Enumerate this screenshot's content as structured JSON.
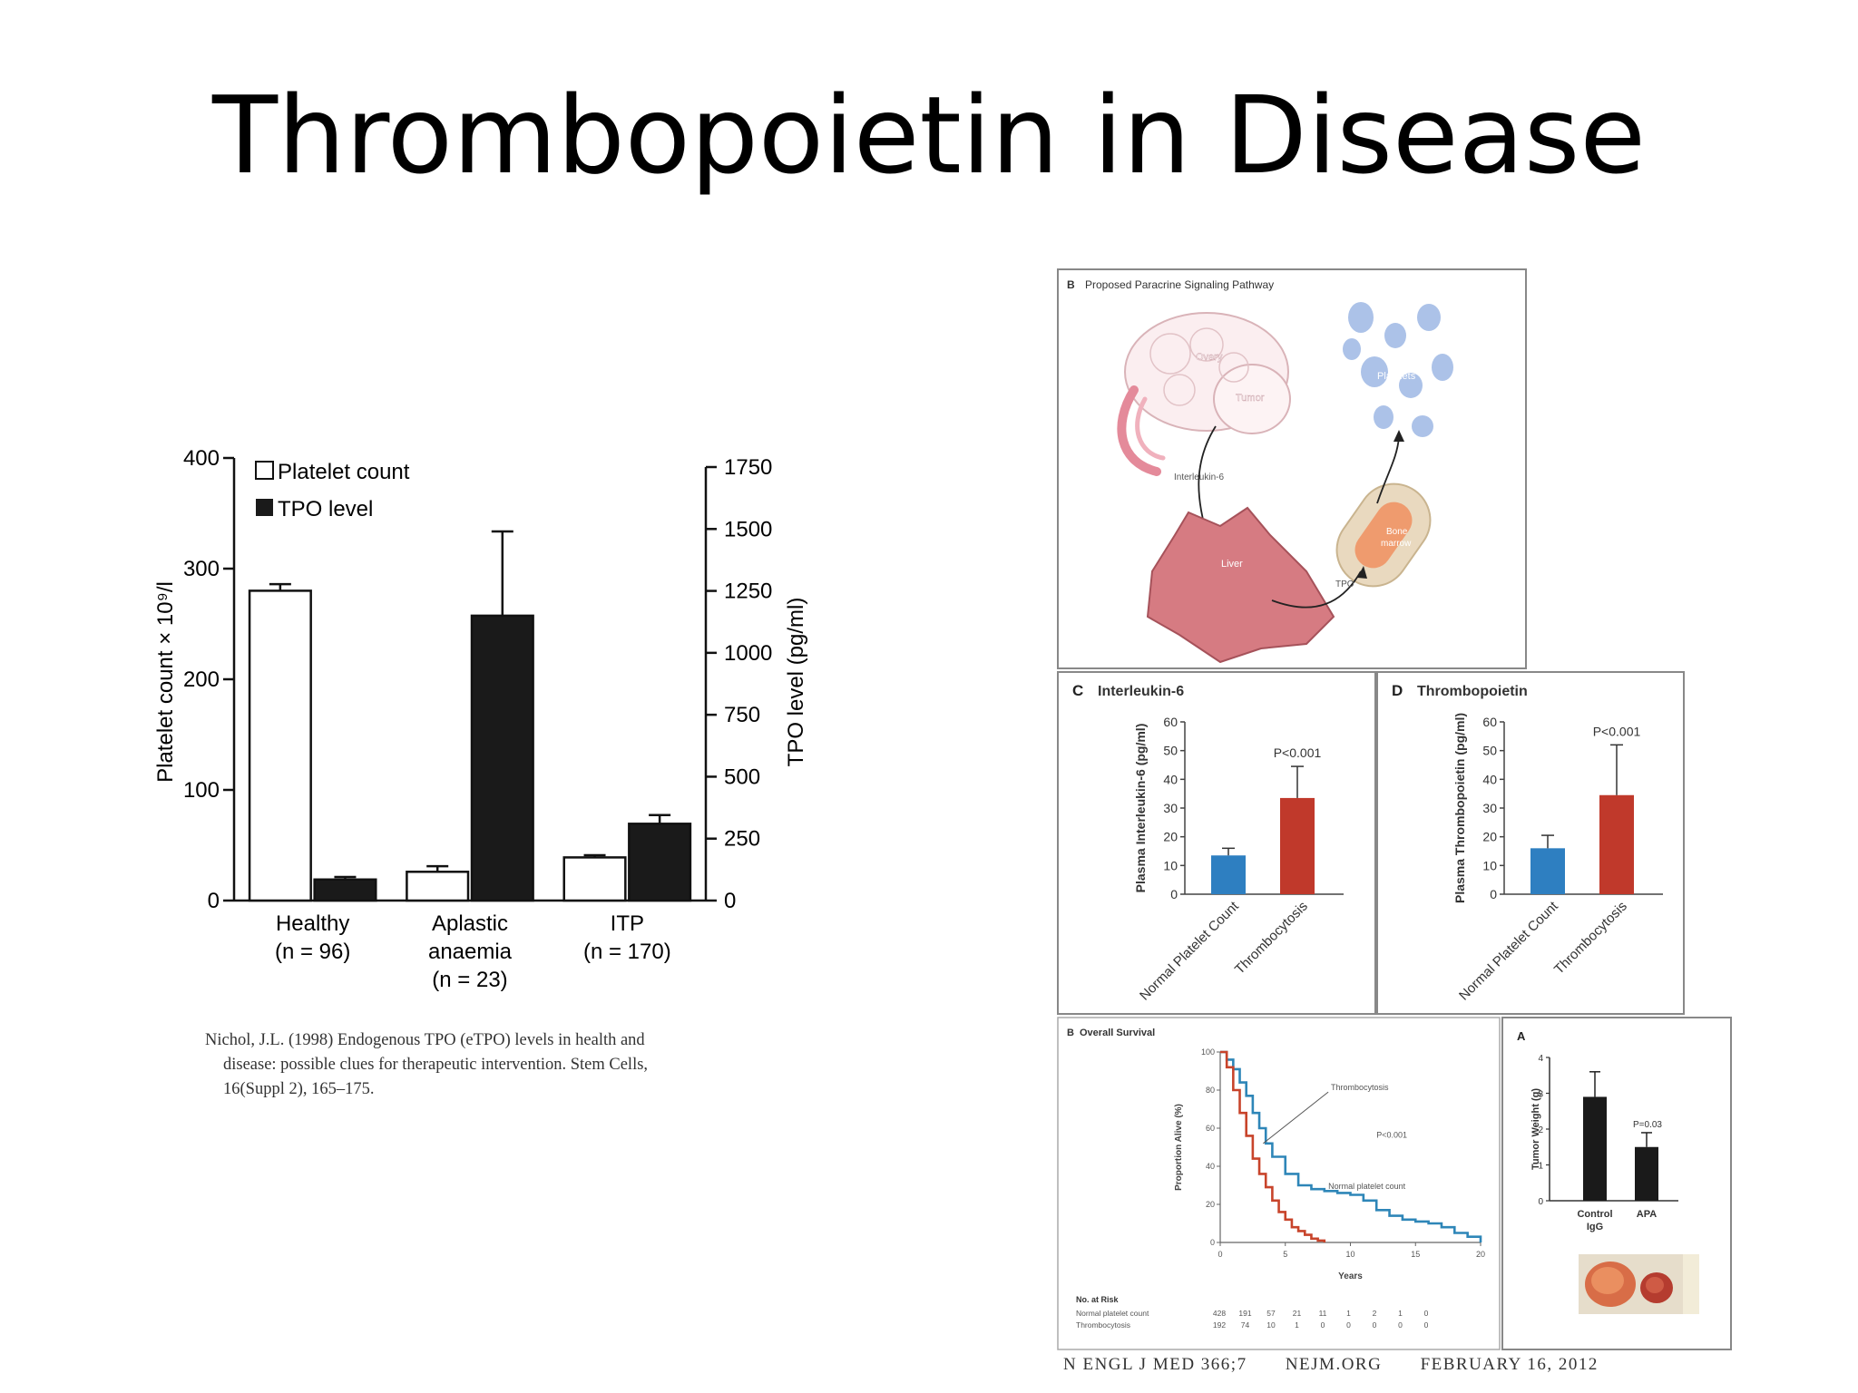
{
  "slide": {
    "title": "Thrombopoietin in Disease",
    "citation_line1": "Nichol, J.L. (1998) Endogenous TPO (eTPO) levels in health and",
    "citation_line2": "disease: possible clues for therapeutic intervention. Stem Cells,",
    "citation_line3": "16(Suppl 2), 165–175.",
    "footer_journal": "N ENGL J MED 366;7",
    "footer_site": "NEJM.ORG",
    "footer_date": "FEBRUARY 16, 2012"
  },
  "chart_data": [
    {
      "type": "bar",
      "categories": [
        "Healthy",
        "Aplastic anaemia",
        "ITP"
      ],
      "category_line1": [
        "Healthy",
        "Aplastic",
        "ITP"
      ],
      "category_line2": [
        "(n = 96)",
        "anaemia",
        "(n = 170)"
      ],
      "category_line3": [
        "",
        "(n = 23)",
        ""
      ],
      "series": [
        {
          "name": "Platelet count",
          "axis": "left",
          "values": [
            280,
            26,
            39
          ],
          "error_upper": [
            286,
            31,
            41
          ],
          "color": "#ffffff"
        },
        {
          "name": "TPO level",
          "axis": "right",
          "values": [
            85,
            1150,
            310
          ],
          "error_upper": [
            95,
            1490,
            345
          ],
          "color": "#1a1a1a"
        }
      ],
      "ylabel": "Platelet count × 10⁹/l",
      "ylabel_right": "TPO level (pg/ml)",
      "ylim": [
        0,
        400
      ],
      "ylim_right": [
        0,
        1750
      ],
      "yticks": [
        "0",
        "100",
        "200",
        "300",
        "400"
      ],
      "yticks_right": [
        "0",
        "250",
        "500",
        "750",
        "1000",
        "1250",
        "1500",
        "1750"
      ],
      "legend": "top-left"
    },
    {
      "panel": "C",
      "type": "bar",
      "title": "Interleukin-6",
      "categories": [
        "Normal Platelet Count",
        "Thrombocytosis"
      ],
      "series": [
        {
          "values": [
            13.5,
            33.5
          ],
          "error_upper": [
            16,
            44.5
          ]
        }
      ],
      "colors": [
        "#2e7fc1",
        "#c0392b"
      ],
      "ylabel": "Plasma Interleukin-6 (pg/ml)",
      "ylim": [
        0,
        60
      ],
      "yticks": [
        "0",
        "10",
        "20",
        "30",
        "40",
        "50",
        "60"
      ],
      "annotation": "P<0.001"
    },
    {
      "panel": "D",
      "type": "bar",
      "title": "Thrombopoietin",
      "categories": [
        "Normal Platelet Count",
        "Thrombocytosis"
      ],
      "series": [
        {
          "values": [
            16,
            34.5
          ],
          "error_upper": [
            20.5,
            52
          ]
        }
      ],
      "colors": [
        "#2e7fc1",
        "#c0392b"
      ],
      "ylabel": "Plasma Thrombopoietin (pg/ml)",
      "ylim": [
        0,
        60
      ],
      "yticks": [
        "0",
        "10",
        "20",
        "30",
        "40",
        "50",
        "60"
      ],
      "annotation": "P<0.001"
    },
    {
      "panel": "B",
      "type": "line",
      "title": "Overall Survival",
      "xlabel": "Years",
      "ylabel": "Proportion Alive (%)",
      "xlim": [
        0,
        20
      ],
      "ylim": [
        0,
        100
      ],
      "xticks": [
        "0",
        "5",
        "10",
        "15",
        "20"
      ],
      "yticks": [
        "0",
        "20",
        "40",
        "60",
        "80",
        "100"
      ],
      "annotation": "P<0.001",
      "series": [
        {
          "name": "Normal platelet count",
          "color": "#2e86b8",
          "x": [
            0,
            0.5,
            1,
            1.5,
            2,
            2.5,
            3,
            3.5,
            4,
            5,
            6,
            7,
            8,
            9,
            10,
            11,
            12,
            13,
            14,
            15,
            16,
            17,
            18,
            19,
            20
          ],
          "y": [
            100,
            96,
            91,
            84,
            77,
            68,
            60,
            52,
            45,
            36,
            30,
            28,
            27,
            26,
            25,
            22,
            17,
            14,
            12,
            11,
            10,
            8,
            5,
            3,
            0
          ]
        },
        {
          "name": "Thrombocytosis",
          "color": "#c8442b",
          "x": [
            0,
            0.5,
            1,
            1.5,
            2,
            2.5,
            3,
            3.5,
            4,
            4.5,
            5,
            5.5,
            6,
            6.5,
            7,
            7.5,
            8
          ],
          "y": [
            100,
            92,
            80,
            68,
            56,
            44,
            36,
            29,
            22,
            16,
            12,
            8,
            6,
            4,
            2,
            1,
            0
          ]
        }
      ],
      "risk_header": "No. at Risk",
      "risk_rows": [
        {
          "label": "Normal platelet count",
          "values": [
            "428",
            "191",
            "57",
            "21",
            "11",
            "1",
            "2",
            "1",
            "0"
          ]
        },
        {
          "label": "Thrombocytosis",
          "values": [
            "192",
            "74",
            "10",
            "1",
            "0",
            "0",
            "0",
            "0",
            "0"
          ]
        }
      ]
    },
    {
      "panel": "A",
      "type": "bar",
      "categories": [
        "Control IgG",
        "APA"
      ],
      "category_line1": [
        "Control",
        "APA"
      ],
      "category_line2": [
        "IgG",
        ""
      ],
      "series": [
        {
          "values": [
            2.9,
            1.5
          ],
          "error_upper": [
            3.6,
            1.9
          ]
        }
      ],
      "colors": [
        "#1a1a1a",
        "#1a1a1a"
      ],
      "ylabel": "Tumor Weight (g)",
      "ylim": [
        0,
        4
      ],
      "yticks": [
        "0",
        "1",
        "2",
        "3",
        "4"
      ],
      "annotation": "P=0.03"
    }
  ],
  "diagram": {
    "panel": "B",
    "title": "Proposed Paracrine Signaling Pathway",
    "labels": {
      "ovary": "Ovary",
      "tumor": "Tumor",
      "platelets": "Platelets",
      "interleukin": "Interleukin-6",
      "liver": "Liver",
      "bone": "Bone",
      "marrow": "marrow",
      "tpo": "TPO"
    }
  }
}
